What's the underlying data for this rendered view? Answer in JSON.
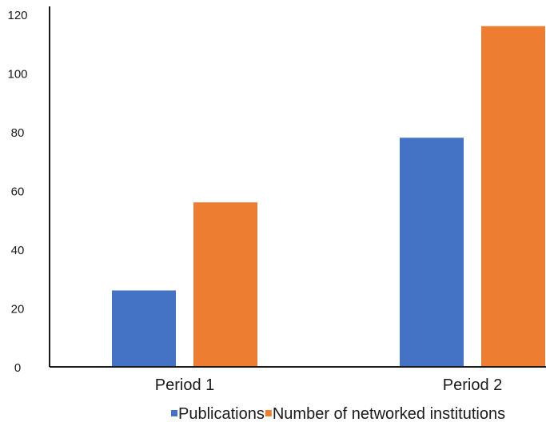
{
  "chart_data": {
    "type": "bar",
    "categories": [
      "Period 1",
      "Period 2"
    ],
    "series": [
      {
        "name": "Publications",
        "values": [
          26,
          78
        ],
        "color": "#4472C4"
      },
      {
        "name": "Number of networked institutions",
        "values": [
          56,
          116
        ],
        "color": "#ED7D31"
      }
    ],
    "ylim": [
      0,
      120
    ],
    "yticks": [
      0,
      20,
      40,
      60,
      80,
      100,
      120
    ],
    "grid": false,
    "legend_position": "bottom-right"
  }
}
